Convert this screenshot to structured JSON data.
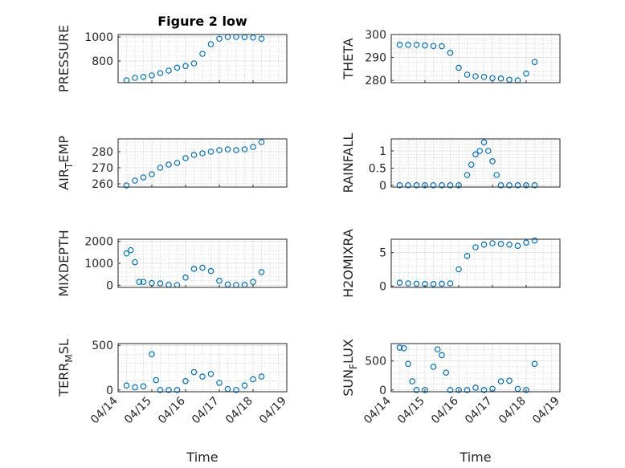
{
  "figure": {
    "title": "Figure 2 low",
    "xlabel": "Time",
    "x_ticks": [
      "04/14",
      "04/15",
      "04/16",
      "04/17",
      "04/18",
      "04/19"
    ],
    "marker_color": "#0072BD"
  },
  "chart_data": [
    {
      "type": "scatter",
      "ylabel": "PRESSURE",
      "ylim": [
        620,
        1020
      ],
      "y_ticks": [
        800,
        1000
      ],
      "xlim": [
        "04/14",
        "04/19"
      ],
      "grid": true,
      "x": [
        "04/14 06:00",
        "04/14 12:00",
        "04/14 18:00",
        "04/15 00:00",
        "04/15 06:00",
        "04/15 12:00",
        "04/15 18:00",
        "04/16 00:00",
        "04/16 06:00",
        "04/16 12:00",
        "04/16 18:00",
        "04/17 00:00",
        "04/17 06:00",
        "04/17 12:00",
        "04/17 18:00",
        "04/18 00:00",
        "04/18 06:00"
      ],
      "y": [
        640,
        660,
        668,
        680,
        700,
        720,
        745,
        758,
        780,
        860,
        940,
        985,
        1000,
        1000,
        998,
        995,
        985
      ]
    },
    {
      "type": "scatter",
      "ylabel": "THETA",
      "ylim": [
        279,
        300
      ],
      "y_ticks": [
        280,
        290,
        300
      ],
      "xlim": [
        "04/14",
        "04/19"
      ],
      "grid": true,
      "x": [
        "04/14 06:00",
        "04/14 12:00",
        "04/14 18:00",
        "04/15 00:00",
        "04/15 06:00",
        "04/15 12:00",
        "04/15 18:00",
        "04/16 00:00",
        "04/16 06:00",
        "04/16 12:00",
        "04/16 18:00",
        "04/17 00:00",
        "04/17 06:00",
        "04/17 12:00",
        "04/17 18:00",
        "04/18 00:00",
        "04/18 06:00"
      ],
      "y": [
        295.5,
        295.5,
        295.5,
        295.2,
        295.0,
        294.9,
        292.0,
        285.5,
        282.5,
        281.8,
        281.5,
        281.0,
        280.8,
        280.3,
        280.0,
        283.0,
        288.0
      ]
    },
    {
      "type": "scatter",
      "ylabel": "AIR_TEMP",
      "ylim": [
        258,
        288
      ],
      "y_ticks": [
        260,
        270,
        280
      ],
      "xlim": [
        "04/14",
        "04/19"
      ],
      "grid": true,
      "x": [
        "04/14 06:00",
        "04/14 12:00",
        "04/14 18:00",
        "04/15 00:00",
        "04/15 06:00",
        "04/15 12:00",
        "04/15 18:00",
        "04/16 00:00",
        "04/16 06:00",
        "04/16 12:00",
        "04/16 18:00",
        "04/17 00:00",
        "04/17 06:00",
        "04/17 12:00",
        "04/17 18:00",
        "04/18 00:00",
        "04/18 06:00"
      ],
      "y": [
        259,
        262,
        264,
        266,
        270,
        272,
        273,
        276,
        278,
        279,
        280,
        281,
        281.5,
        281,
        281.5,
        283,
        286
      ]
    },
    {
      "type": "scatter",
      "ylabel": "RAINFALL",
      "ylim": [
        -0.05,
        1.35
      ],
      "y_ticks": [
        0,
        0.5,
        1
      ],
      "xlim": [
        "04/14",
        "04/19"
      ],
      "grid": true,
      "x": [
        "04/14 06:00",
        "04/14 12:00",
        "04/14 18:00",
        "04/15 00:00",
        "04/15 06:00",
        "04/15 12:00",
        "04/15 18:00",
        "04/16 00:00",
        "04/16 06:00",
        "04/16 09:00",
        "04/16 12:00",
        "04/16 15:00",
        "04/16 18:00",
        "04/16 21:00",
        "04/17 00:00",
        "04/17 03:00",
        "04/17 06:00",
        "04/17 12:00",
        "04/17 18:00",
        "04/18 00:00",
        "04/18 06:00"
      ],
      "y": [
        0,
        0,
        0,
        0,
        0,
        0,
        0,
        0,
        0.3,
        0.6,
        0.9,
        1.0,
        1.25,
        1.0,
        0.7,
        0.3,
        0,
        0,
        0,
        0,
        0
      ]
    },
    {
      "type": "scatter",
      "ylabel": "MIXDEPTH",
      "ylim": [
        -100,
        2100
      ],
      "y_ticks": [
        0,
        1000,
        2000
      ],
      "xlim": [
        "04/14",
        "04/19"
      ],
      "grid": true,
      "x": [
        "04/14 06:00",
        "04/14 09:00",
        "04/14 12:00",
        "04/14 15:00",
        "04/14 18:00",
        "04/15 00:00",
        "04/15 06:00",
        "04/15 12:00",
        "04/15 18:00",
        "04/16 00:00",
        "04/16 06:00",
        "04/16 12:00",
        "04/16 18:00",
        "04/17 00:00",
        "04/17 06:00",
        "04/17 12:00",
        "04/17 18:00",
        "04/18 00:00",
        "04/18 06:00"
      ],
      "y": [
        1450,
        1600,
        1050,
        150,
        150,
        100,
        80,
        20,
        10,
        350,
        750,
        800,
        650,
        200,
        30,
        10,
        20,
        150,
        600
      ]
    },
    {
      "type": "scatter",
      "ylabel": "H2OMIXRA",
      "ylim": [
        -0.2,
        7
      ],
      "y_ticks": [
        0,
        5
      ],
      "xlim": [
        "04/14",
        "04/19"
      ],
      "grid": true,
      "x": [
        "04/14 06:00",
        "04/14 12:00",
        "04/14 18:00",
        "04/15 00:00",
        "04/15 06:00",
        "04/15 12:00",
        "04/15 18:00",
        "04/16 00:00",
        "04/16 06:00",
        "04/16 12:00",
        "04/16 18:00",
        "04/17 00:00",
        "04/17 06:00",
        "04/17 12:00",
        "04/17 18:00",
        "04/18 00:00",
        "04/18 06:00"
      ],
      "y": [
        0.5,
        0.4,
        0.35,
        0.3,
        0.3,
        0.35,
        0.4,
        2.5,
        4.5,
        5.8,
        6.2,
        6.4,
        6.3,
        6.2,
        6.0,
        6.5,
        6.8
      ]
    },
    {
      "type": "scatter",
      "ylabel": "TERR_MSL",
      "ylim": [
        -20,
        520
      ],
      "y_ticks": [
        0,
        500
      ],
      "xlim": [
        "04/14",
        "04/19"
      ],
      "grid": true,
      "x": [
        "04/14 06:00",
        "04/14 12:00",
        "04/14 18:00",
        "04/15 00:00",
        "04/15 03:00",
        "04/15 06:00",
        "04/15 12:00",
        "04/15 18:00",
        "04/16 00:00",
        "04/16 06:00",
        "04/16 12:00",
        "04/16 18:00",
        "04/17 00:00",
        "04/17 06:00",
        "04/17 12:00",
        "04/17 18:00",
        "04/18 00:00",
        "04/18 06:00"
      ],
      "y": [
        50,
        30,
        40,
        400,
        110,
        0,
        0,
        0,
        100,
        200,
        150,
        180,
        80,
        10,
        0,
        50,
        120,
        150
      ]
    },
    {
      "type": "scatter",
      "ylabel": "SUN_FLUX",
      "ylim": [
        -30,
        800
      ],
      "y_ticks": [
        0,
        500
      ],
      "xlim": [
        "04/14",
        "04/19"
      ],
      "grid": true,
      "x": [
        "04/14 06:00",
        "04/14 09:00",
        "04/14 12:00",
        "04/14 15:00",
        "04/14 18:00",
        "04/15 00:00",
        "04/15 06:00",
        "04/15 09:00",
        "04/15 12:00",
        "04/15 15:00",
        "04/15 18:00",
        "04/16 00:00",
        "04/16 06:00",
        "04/16 12:00",
        "04/16 18:00",
        "04/17 00:00",
        "04/17 06:00",
        "04/17 12:00",
        "04/17 18:00",
        "04/18 00:00",
        "04/18 06:00"
      ],
      "y": [
        730,
        720,
        450,
        150,
        0,
        0,
        400,
        700,
        600,
        300,
        0,
        0,
        0,
        40,
        0,
        20,
        150,
        160,
        20,
        0,
        450
      ]
    }
  ]
}
